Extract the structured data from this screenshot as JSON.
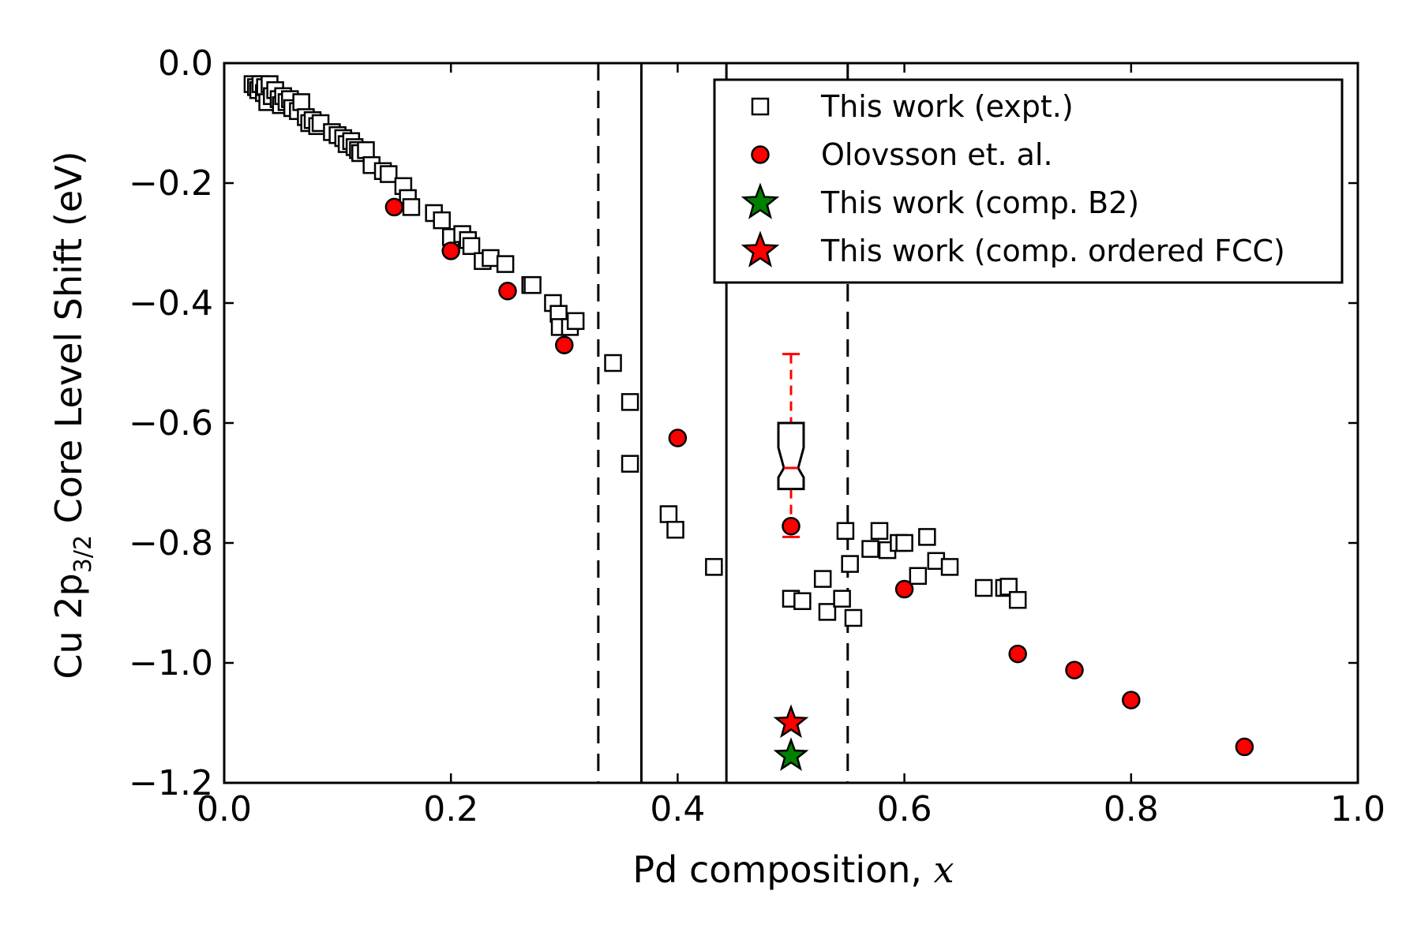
{
  "chart_data": {
    "type": "scatter",
    "xlabel": "Pd composition, ",
    "xlabel_var": "x",
    "ylabel_prefix": "Cu 2p",
    "ylabel_sub": "3/2",
    "ylabel_suffix": " Core Level Shift (eV)",
    "xlim": [
      0.0,
      1.0
    ],
    "ylim": [
      -1.2,
      0.0
    ],
    "x_ticks": [
      0.0,
      0.2,
      0.4,
      0.6,
      0.8,
      1.0
    ],
    "x_tick_labels": [
      "0.0",
      "0.2",
      "0.4",
      "0.6",
      "0.8",
      "1.0"
    ],
    "y_ticks": [
      0.0,
      -0.2,
      -0.4,
      -0.6,
      -0.8,
      -1.0,
      -1.2
    ],
    "y_tick_labels": [
      "0.0",
      "−0.2",
      "−0.4",
      "−0.6",
      "−0.8",
      "−1.0",
      "−1.2"
    ],
    "grid": false,
    "legend_position": "top-right",
    "vlines": [
      {
        "x": 0.33,
        "style": "dashed"
      },
      {
        "x": 0.368,
        "style": "solid"
      },
      {
        "x": 0.443,
        "style": "solid"
      },
      {
        "x": 0.55,
        "style": "dashed"
      }
    ],
    "series": [
      {
        "name": "This work (expt.)",
        "marker": "square",
        "color": "#ffffff",
        "edge": "#000000",
        "points": [
          [
            0.025,
            -0.035
          ],
          [
            0.028,
            -0.04
          ],
          [
            0.03,
            -0.045
          ],
          [
            0.032,
            -0.035
          ],
          [
            0.035,
            -0.05
          ],
          [
            0.036,
            -0.04
          ],
          [
            0.038,
            -0.065
          ],
          [
            0.04,
            -0.035
          ],
          [
            0.042,
            -0.055
          ],
          [
            0.045,
            -0.045
          ],
          [
            0.048,
            -0.06
          ],
          [
            0.05,
            -0.07
          ],
          [
            0.052,
            -0.055
          ],
          [
            0.055,
            -0.065
          ],
          [
            0.058,
            -0.06
          ],
          [
            0.06,
            -0.075
          ],
          [
            0.065,
            -0.08
          ],
          [
            0.068,
            -0.065
          ],
          [
            0.072,
            -0.09
          ],
          [
            0.075,
            -0.1
          ],
          [
            0.078,
            -0.095
          ],
          [
            0.082,
            -0.105
          ],
          [
            0.085,
            -0.1
          ],
          [
            0.095,
            -0.115
          ],
          [
            0.1,
            -0.12
          ],
          [
            0.105,
            -0.125
          ],
          [
            0.108,
            -0.135
          ],
          [
            0.112,
            -0.13
          ],
          [
            0.115,
            -0.14
          ],
          [
            0.118,
            -0.145
          ],
          [
            0.12,
            -0.15
          ],
          [
            0.125,
            -0.145
          ],
          [
            0.13,
            -0.17
          ],
          [
            0.14,
            -0.18
          ],
          [
            0.145,
            -0.185
          ],
          [
            0.158,
            -0.205
          ],
          [
            0.162,
            -0.225
          ],
          [
            0.165,
            -0.24
          ],
          [
            0.185,
            -0.25
          ],
          [
            0.192,
            -0.262
          ],
          [
            0.2,
            -0.29
          ],
          [
            0.21,
            -0.285
          ],
          [
            0.215,
            -0.295
          ],
          [
            0.218,
            -0.305
          ],
          [
            0.228,
            -0.33
          ],
          [
            0.235,
            -0.325
          ],
          [
            0.248,
            -0.335
          ],
          [
            0.27,
            -0.37
          ],
          [
            0.272,
            -0.37
          ],
          [
            0.29,
            -0.4
          ],
          [
            0.295,
            -0.418
          ],
          [
            0.296,
            -0.44
          ],
          [
            0.305,
            -0.44
          ],
          [
            0.31,
            -0.43
          ],
          [
            0.343,
            -0.5
          ],
          [
            0.358,
            -0.565
          ],
          [
            0.358,
            -0.668
          ],
          [
            0.392,
            -0.752
          ],
          [
            0.398,
            -0.778
          ],
          [
            0.432,
            -0.84
          ],
          [
            0.5,
            -0.893
          ],
          [
            0.51,
            -0.897
          ],
          [
            0.528,
            -0.86
          ],
          [
            0.532,
            -0.915
          ],
          [
            0.545,
            -0.893
          ],
          [
            0.548,
            -0.78
          ],
          [
            0.552,
            -0.835
          ],
          [
            0.555,
            -0.925
          ],
          [
            0.57,
            -0.81
          ],
          [
            0.578,
            -0.78
          ],
          [
            0.585,
            -0.812
          ],
          [
            0.595,
            -0.8
          ],
          [
            0.6,
            -0.8
          ],
          [
            0.612,
            -0.855
          ],
          [
            0.62,
            -0.79
          ],
          [
            0.628,
            -0.83
          ],
          [
            0.64,
            -0.84
          ],
          [
            0.67,
            -0.875
          ],
          [
            0.688,
            -0.875
          ],
          [
            0.692,
            -0.873
          ],
          [
            0.7,
            -0.895
          ]
        ]
      },
      {
        "name": "Olovsson et. al.",
        "marker": "circle",
        "color": "#ff0000",
        "edge": "#000000",
        "points": [
          [
            0.15,
            -0.24
          ],
          [
            0.2,
            -0.313
          ],
          [
            0.25,
            -0.38
          ],
          [
            0.3,
            -0.47
          ],
          [
            0.4,
            -0.625
          ],
          [
            0.5,
            -0.772
          ],
          [
            0.6,
            -0.877
          ],
          [
            0.7,
            -0.985
          ],
          [
            0.75,
            -1.012
          ],
          [
            0.8,
            -1.062
          ],
          [
            0.9,
            -1.14
          ]
        ]
      },
      {
        "name": "This work (comp. B2)",
        "marker": "star",
        "color": "#008000",
        "edge": "#000000",
        "points": [
          [
            0.5,
            -1.155
          ]
        ]
      },
      {
        "name": "This work (comp. ordered FCC)",
        "marker": "star",
        "color": "#ff0000",
        "edge": "#000000",
        "points": [
          [
            0.5,
            -1.1
          ]
        ]
      }
    ],
    "boxplot": {
      "x": 0.5,
      "whisker_low": -0.79,
      "q1": -0.71,
      "median": -0.675,
      "q3": -0.6,
      "whisker_high": -0.485,
      "whisker_color": "#ff0000",
      "median_color": "#ff0000",
      "box_color": "#000000"
    }
  }
}
